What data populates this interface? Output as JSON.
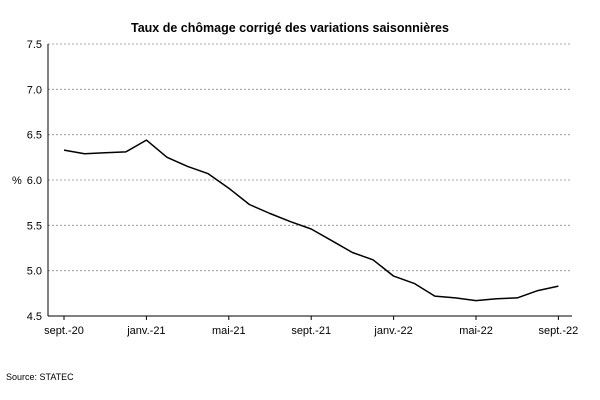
{
  "source": "Source: STATEC",
  "chart_data": {
    "type": "line",
    "title": "Taux de chômage corrigé des variations saisonnières",
    "xlabel": "",
    "ylabel": "%",
    "ylim": [
      4.5,
      7.5
    ],
    "yticks": [
      "7.5",
      "7.0",
      "6.5",
      "6.0",
      "5.5",
      "5.0",
      "4.5"
    ],
    "xtick_labels": [
      "sept.-20",
      "janv.-21",
      "mai-21",
      "sept.-21",
      "janv.-22",
      "mai-22",
      "sept.-22"
    ],
    "grid": true,
    "line_color": "#000000",
    "x": [
      "2020-09",
      "2020-10",
      "2020-11",
      "2020-12",
      "2021-01",
      "2021-02",
      "2021-03",
      "2021-04",
      "2021-05",
      "2021-06",
      "2021-07",
      "2021-08",
      "2021-09",
      "2021-10",
      "2021-11",
      "2021-12",
      "2022-01",
      "2022-02",
      "2022-03",
      "2022-04",
      "2022-05",
      "2022-06",
      "2022-07",
      "2022-08",
      "2022-09"
    ],
    "values": [
      6.33,
      6.29,
      6.3,
      6.31,
      6.44,
      6.25,
      6.15,
      6.07,
      5.91,
      5.73,
      5.63,
      5.54,
      5.46,
      5.33,
      5.2,
      5.12,
      4.94,
      4.86,
      4.72,
      4.7,
      4.67,
      4.69,
      4.7,
      4.78,
      4.83
    ]
  }
}
